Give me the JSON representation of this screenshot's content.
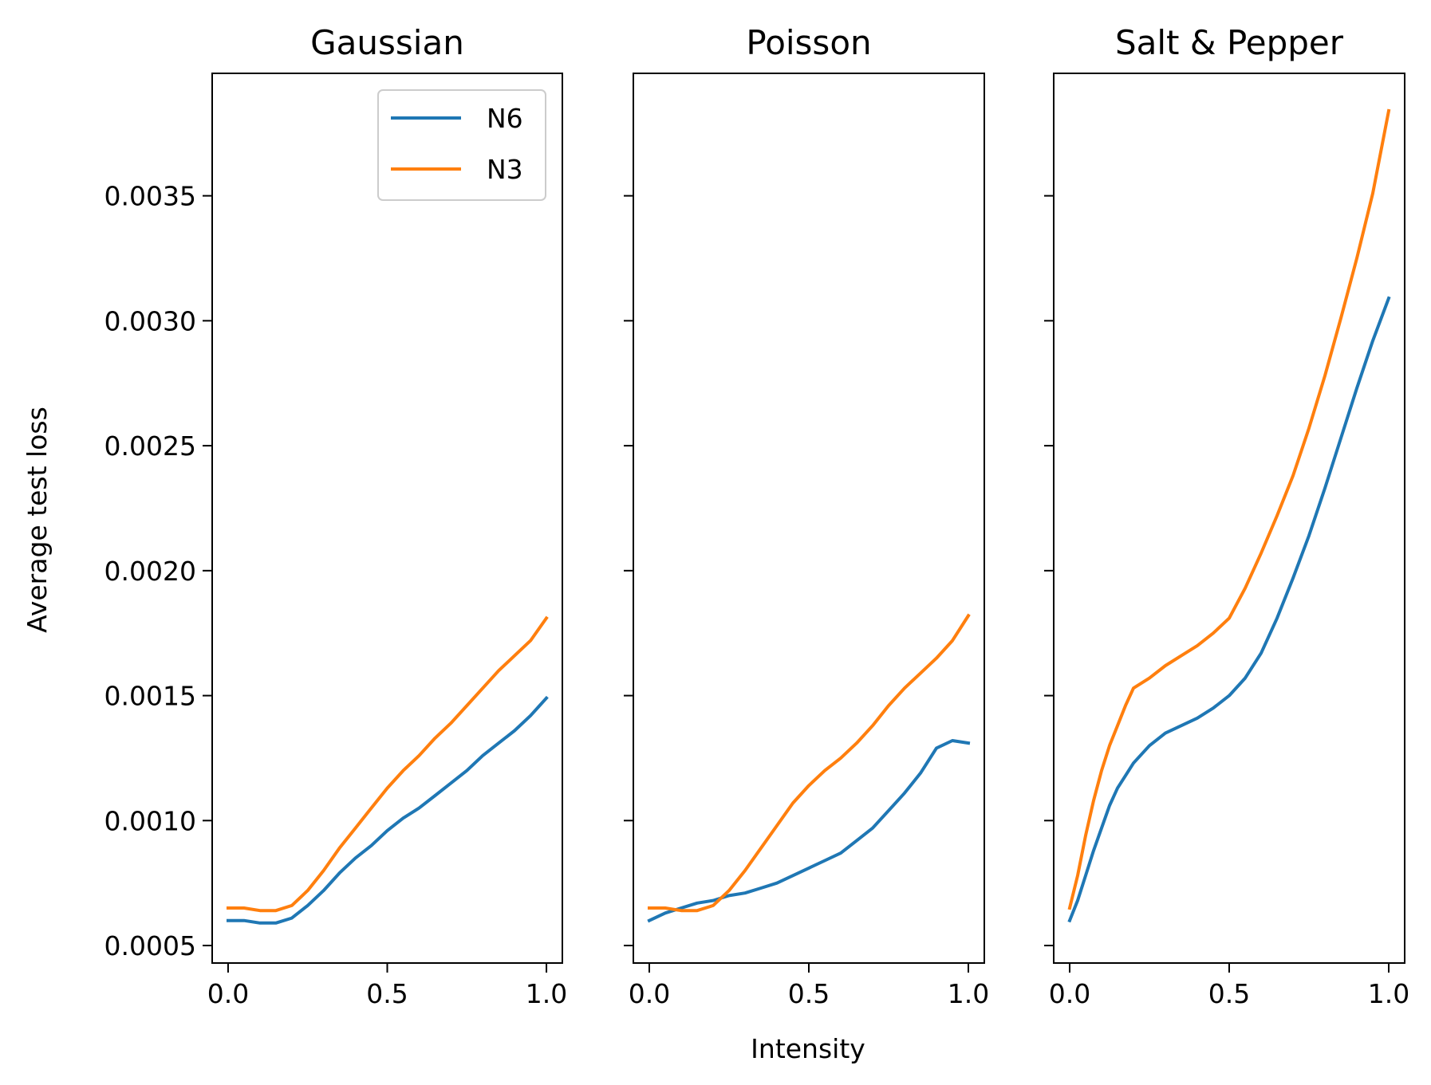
{
  "figure": {
    "ylabel": "Average test loss",
    "xlabel": "Intensity",
    "shared_y": true,
    "legend": {
      "placement": "upper right of first panel",
      "entries": [
        "N6",
        "N3"
      ]
    },
    "colors": {
      "N6": "#1f77b4",
      "N3": "#ff7f0e"
    }
  },
  "chart_data": [
    {
      "type": "line",
      "title": "Gaussian",
      "xlabel": "",
      "ylabel": "Average test loss",
      "xlim": [
        -0.05,
        1.05
      ],
      "ylim": [
        0.00043,
        0.00399
      ],
      "xticks": [
        "0.0",
        "0.5",
        "1.0"
      ],
      "yticks": [
        "0.0005",
        "0.0010",
        "0.0015",
        "0.0020",
        "0.0025",
        "0.0030",
        "0.0035"
      ],
      "grid": false,
      "legend": "top-right",
      "x": [
        0.0,
        0.05,
        0.1,
        0.15,
        0.2,
        0.25,
        0.3,
        0.35,
        0.4,
        0.45,
        0.5,
        0.55,
        0.6,
        0.65,
        0.7,
        0.75,
        0.8,
        0.85,
        0.9,
        0.95,
        1.0
      ],
      "series": [
        {
          "name": "N6",
          "color": "#1f77b4",
          "values": [
            0.0006,
            0.0006,
            0.00059,
            0.00059,
            0.00061,
            0.00066,
            0.00072,
            0.00079,
            0.00085,
            0.0009,
            0.00096,
            0.00101,
            0.00105,
            0.0011,
            0.00115,
            0.0012,
            0.00126,
            0.00131,
            0.00136,
            0.00142,
            0.00149
          ]
        },
        {
          "name": "N3",
          "color": "#ff7f0e",
          "values": [
            0.00065,
            0.00065,
            0.00064,
            0.00064,
            0.00066,
            0.00072,
            0.0008,
            0.00089,
            0.00097,
            0.00105,
            0.00113,
            0.0012,
            0.00126,
            0.00133,
            0.00139,
            0.00146,
            0.00153,
            0.0016,
            0.00166,
            0.00172,
            0.00181
          ]
        }
      ]
    },
    {
      "type": "line",
      "title": "Poisson",
      "xlabel": "Intensity",
      "ylabel": "",
      "xlim": [
        -0.05,
        1.05
      ],
      "ylim": [
        0.00043,
        0.00399
      ],
      "xticks": [
        "0.0",
        "0.5",
        "1.0"
      ],
      "yticks": [
        "",
        "",
        "",
        "",
        "",
        "",
        ""
      ],
      "grid": false,
      "x": [
        0.0,
        0.05,
        0.1,
        0.15,
        0.2,
        0.25,
        0.3,
        0.35,
        0.4,
        0.45,
        0.5,
        0.55,
        0.6,
        0.65,
        0.7,
        0.75,
        0.8,
        0.85,
        0.9,
        0.95,
        1.0
      ],
      "series": [
        {
          "name": "N6",
          "color": "#1f77b4",
          "values": [
            0.0006,
            0.00063,
            0.00065,
            0.00067,
            0.00068,
            0.0007,
            0.00071,
            0.00073,
            0.00075,
            0.00078,
            0.00081,
            0.00084,
            0.00087,
            0.00092,
            0.00097,
            0.00104,
            0.00111,
            0.00119,
            0.00129,
            0.00132,
            0.00131
          ]
        },
        {
          "name": "N3",
          "color": "#ff7f0e",
          "values": [
            0.00065,
            0.00065,
            0.00064,
            0.00064,
            0.00066,
            0.00072,
            0.0008,
            0.00089,
            0.00098,
            0.00107,
            0.00114,
            0.0012,
            0.00125,
            0.00131,
            0.00138,
            0.00146,
            0.00153,
            0.00159,
            0.00165,
            0.00172,
            0.00182
          ]
        }
      ]
    },
    {
      "type": "line",
      "title": "Salt & Pepper",
      "xlabel": "",
      "ylabel": "",
      "xlim": [
        -0.05,
        1.05
      ],
      "ylim": [
        0.00043,
        0.00399
      ],
      "xticks": [
        "0.0",
        "0.5",
        "1.0"
      ],
      "yticks": [
        "",
        "",
        "",
        "",
        "",
        "",
        ""
      ],
      "grid": false,
      "x": [
        0.0,
        0.025,
        0.05,
        0.075,
        0.1,
        0.125,
        0.15,
        0.175,
        0.2,
        0.25,
        0.3,
        0.35,
        0.4,
        0.45,
        0.5,
        0.55,
        0.6,
        0.65,
        0.7,
        0.75,
        0.8,
        0.85,
        0.9,
        0.95,
        1.0
      ],
      "series": [
        {
          "name": "N6",
          "color": "#1f77b4",
          "values": [
            0.0006,
            0.00068,
            0.00078,
            0.00088,
            0.00097,
            0.00106,
            0.00113,
            0.00118,
            0.00123,
            0.0013,
            0.00135,
            0.00138,
            0.00141,
            0.00145,
            0.0015,
            0.00157,
            0.00167,
            0.00181,
            0.00197,
            0.00214,
            0.00233,
            0.00253,
            0.00273,
            0.00292,
            0.00309
          ]
        },
        {
          "name": "N3",
          "color": "#ff7f0e",
          "values": [
            0.00065,
            0.00078,
            0.00094,
            0.00108,
            0.0012,
            0.0013,
            0.00138,
            0.00146,
            0.00153,
            0.00157,
            0.00162,
            0.00166,
            0.0017,
            0.00175,
            0.00181,
            0.00193,
            0.00207,
            0.00222,
            0.00238,
            0.00257,
            0.00278,
            0.00301,
            0.00325,
            0.00351,
            0.00384
          ]
        }
      ]
    }
  ]
}
